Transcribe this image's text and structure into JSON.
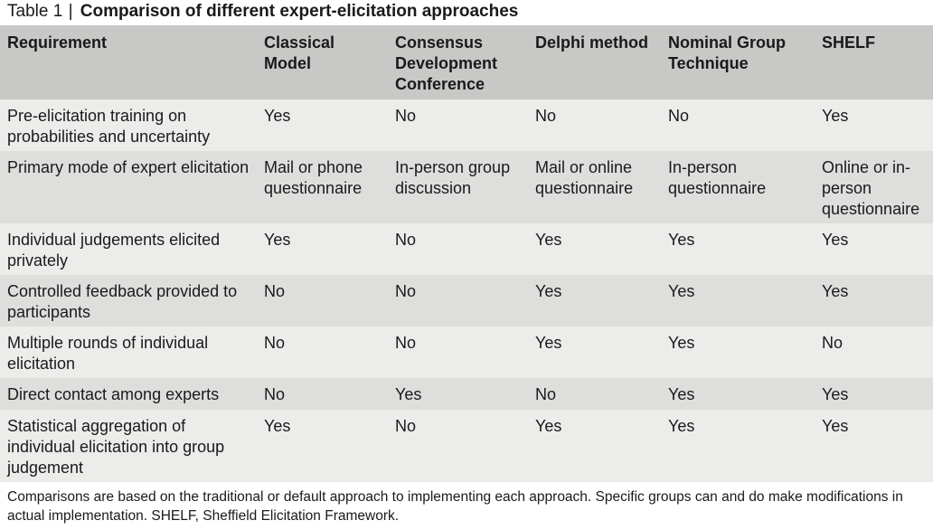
{
  "caption": {
    "label": "Table 1",
    "separator": "|",
    "title": "Comparison of different expert-elicitation approaches"
  },
  "header": [
    "Requirement",
    "Classical Model",
    "Consensus Development Conference",
    "Delphi method",
    "Nominal Group Technique",
    "SHELF"
  ],
  "rows": [
    [
      "Pre-elicitation training on probabilities and uncertainty",
      "Yes",
      "No",
      "No",
      "No",
      "Yes"
    ],
    [
      "Primary mode of expert elicitation",
      "Mail or phone questionnaire",
      "In-person group discussion",
      "Mail or online questionnaire",
      "In-person questionnaire",
      "Online or in-person questionnaire"
    ],
    [
      "Individual judgements elicited privately",
      "Yes",
      "No",
      "Yes",
      "Yes",
      "Yes"
    ],
    [
      "Controlled feedback provided to participants",
      "No",
      "No",
      "Yes",
      "Yes",
      "Yes"
    ],
    [
      "Multiple rounds of individual elicitation",
      "No",
      "No",
      "Yes",
      "Yes",
      "No"
    ],
    [
      "Direct contact among experts",
      "No",
      "Yes",
      "No",
      "Yes",
      "Yes"
    ],
    [
      "Statistical aggregation of individual elicitation into group judgement",
      "Yes",
      "No",
      "Yes",
      "Yes",
      "Yes"
    ]
  ],
  "footnote": "Comparisons are based on the traditional or default approach to implementing each approach. Specific groups can and do make modifications in actual implementation. SHELF, Sheffield Elicitation Framework.",
  "colors": {
    "header_bg": "#c8c8c7",
    "row_bg": "#ececeb",
    "row_alt_bg": "#dededd"
  }
}
